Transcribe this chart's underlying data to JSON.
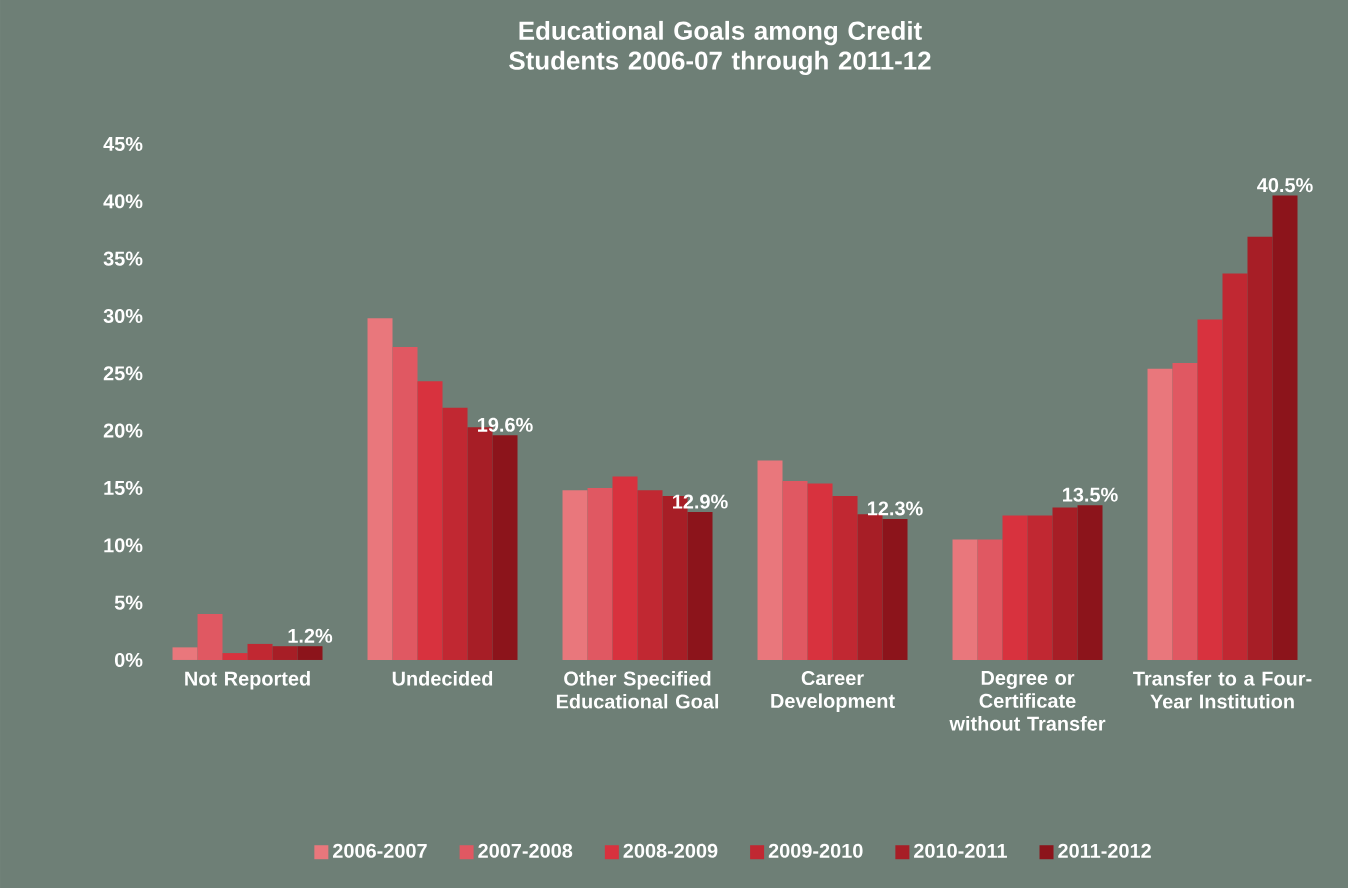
{
  "chart_data": {
    "type": "bar",
    "title": "Educational Goals among Credit Students 2006-07 through 2011-12",
    "categories": [
      "Not Reported",
      "Undecided",
      "Other Specified Educational Goal",
      "Career Development",
      "Degree or Certificate without Transfer",
      "Transfer to a Four-Year Institution"
    ],
    "series": [
      {
        "name": "2006-2007",
        "color": "#e9777c",
        "values": [
          1.1,
          29.8,
          14.8,
          17.4,
          10.5,
          25.4
        ]
      },
      {
        "name": "2007-2008",
        "color": "#e05862",
        "values": [
          4.0,
          27.3,
          15.0,
          15.6,
          10.5,
          25.9
        ]
      },
      {
        "name": "2008-2009",
        "color": "#d8323e",
        "values": [
          0.6,
          24.3,
          16.0,
          15.4,
          12.6,
          29.7
        ]
      },
      {
        "name": "2009-2010",
        "color": "#c12832",
        "values": [
          1.4,
          22.0,
          14.8,
          14.3,
          12.6,
          33.7
        ]
      },
      {
        "name": "2010-2011",
        "color": "#a71e26",
        "values": [
          1.2,
          20.3,
          14.3,
          12.7,
          13.3,
          36.9
        ]
      },
      {
        "name": "2011-2012",
        "color": "#8c141b",
        "values": [
          1.2,
          19.6,
          12.9,
          12.3,
          13.5,
          40.5
        ],
        "value_labels": [
          "1.2%",
          "19.6%",
          "12.9%",
          "12.3%",
          "13.5%",
          "40.5%"
        ]
      }
    ],
    "ylim": [
      0,
      45
    ],
    "yticks": [
      {
        "value": 0,
        "label": "0%"
      },
      {
        "value": 5,
        "label": "5%"
      },
      {
        "value": 10,
        "label": "10%"
      },
      {
        "value": 15,
        "label": "15%"
      },
      {
        "value": 20,
        "label": "20%"
      },
      {
        "value": 25,
        "label": "25%"
      },
      {
        "value": 30,
        "label": "30%"
      },
      {
        "value": 35,
        "label": "35%"
      },
      {
        "value": 40,
        "label": "40%"
      },
      {
        "value": 45,
        "label": "45%"
      }
    ],
    "grid": false,
    "legend": "bottom"
  }
}
